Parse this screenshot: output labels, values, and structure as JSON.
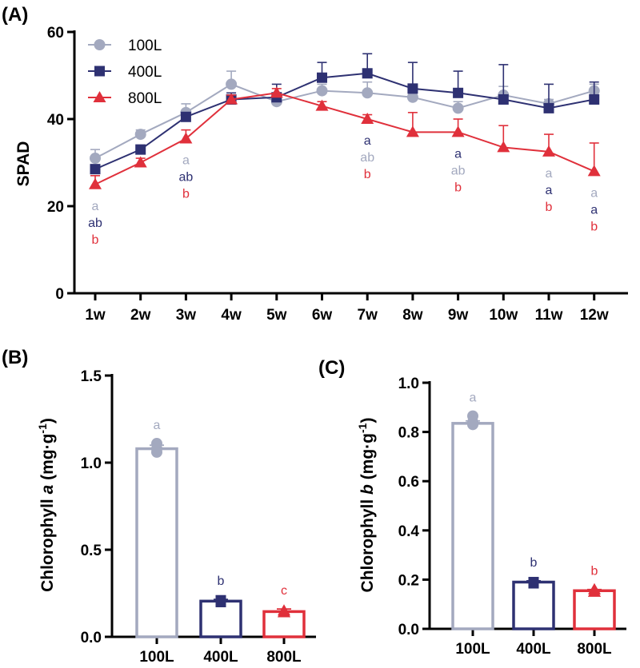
{
  "colors": {
    "100L": "#a3a9bf",
    "400L": "#2e3172",
    "800L": "#e0303b"
  },
  "chart_data": [
    {
      "panel": "(A)",
      "type": "line",
      "ylabel": "SPAD",
      "ylim": [
        0,
        60
      ],
      "yticks": [
        0,
        20,
        40,
        60
      ],
      "categories": [
        "1w",
        "2w",
        "3w",
        "4w",
        "5w",
        "6w",
        "7w",
        "8w",
        "9w",
        "10w",
        "11w",
        "12w"
      ],
      "legend": {
        "placement": "top-left",
        "entries": [
          "100L",
          "400L",
          "800L"
        ]
      },
      "series": [
        {
          "name": "100L",
          "marker": "circle",
          "values": [
            31,
            36.5,
            41.5,
            48,
            44,
            46.5,
            46,
            45,
            42.5,
            45.5,
            43.5,
            46.5
          ],
          "errors": [
            2,
            1,
            2,
            3,
            1,
            1.5,
            2.5,
            1.5,
            1.5,
            2,
            1,
            1.5
          ]
        },
        {
          "name": "400L",
          "marker": "square",
          "values": [
            28.5,
            33,
            40.5,
            44.5,
            45,
            49.5,
            50.5,
            47,
            46,
            44.5,
            42.5,
            44.5
          ],
          "errors": [
            1,
            1,
            1,
            1.5,
            3,
            3.5,
            4.5,
            6,
            5,
            8,
            5.5,
            4
          ]
        },
        {
          "name": "800L",
          "marker": "triangle",
          "values": [
            25,
            30,
            35.5,
            44.5,
            46,
            43,
            40,
            37,
            37,
            33.5,
            32.5,
            28
          ],
          "errors": [
            2,
            1,
            2,
            1,
            1,
            1,
            1,
            4.5,
            3,
            5,
            4,
            6.5
          ]
        }
      ],
      "significance": [
        {
          "category": "1w",
          "letters": [
            [
              "a",
              "100L"
            ],
            [
              "ab",
              "400L"
            ],
            [
              "b",
              "800L"
            ]
          ]
        },
        {
          "category": "3w",
          "letters": [
            [
              "a",
              "100L"
            ],
            [
              "ab",
              "400L"
            ],
            [
              "b",
              "800L"
            ]
          ]
        },
        {
          "category": "7w",
          "letters": [
            [
              "a",
              "400L"
            ],
            [
              "ab",
              "100L"
            ],
            [
              "b",
              "800L"
            ]
          ]
        },
        {
          "category": "9w",
          "letters": [
            [
              "a",
              "400L"
            ],
            [
              "ab",
              "100L"
            ],
            [
              "b",
              "800L"
            ]
          ]
        },
        {
          "category": "11w",
          "letters": [
            [
              "a",
              "100L"
            ],
            [
              "a",
              "400L"
            ],
            [
              "b",
              "800L"
            ]
          ]
        },
        {
          "category": "12w",
          "letters": [
            [
              "a",
              "100L"
            ],
            [
              "a",
              "400L"
            ],
            [
              "b",
              "800L"
            ]
          ]
        }
      ]
    },
    {
      "panel": "(B)",
      "type": "bar",
      "ylabel": "Chlorophyll a (mg·g-1)",
      "ylabel_parts": {
        "pre": "Chlorophyll ",
        "italic": "a",
        "post": " (mg·g",
        "sup": "-1",
        "close": ")"
      },
      "ylim": [
        0,
        1.5
      ],
      "yticks": [
        "0.0",
        "0.5",
        "1.0",
        "1.5"
      ],
      "categories": [
        "100L",
        "400L",
        "800L"
      ],
      "values": [
        1.08,
        0.205,
        0.145
      ],
      "errors": [
        0.02,
        0.01,
        0.015
      ],
      "points": [
        [
          1.11,
          1.08,
          1.06
        ],
        [
          0.21,
          0.2,
          0.2
        ],
        [
          0.15,
          0.14,
          0.14
        ]
      ],
      "letters": [
        "a",
        "b",
        "c"
      ]
    },
    {
      "panel": "(C)",
      "type": "bar",
      "ylabel": "Chlorophyll b (mg·g-1)",
      "ylabel_parts": {
        "pre": "Chlorophyll ",
        "italic": "b",
        "post": " (mg·g",
        "sup": "-1",
        "close": ")"
      },
      "ylim": [
        0,
        1.0
      ],
      "yticks": [
        "0.0",
        "0.2",
        "0.4",
        "0.6",
        "0.8",
        "1.0"
      ],
      "categories": [
        "100L",
        "400L",
        "800L"
      ],
      "values": [
        0.835,
        0.19,
        0.155
      ],
      "errors": [
        0.01,
        0.005,
        0.005
      ],
      "points": [
        [
          0.865,
          0.84,
          0.83
        ],
        [
          0.19,
          0.19,
          0.185
        ],
        [
          0.16,
          0.15,
          0.15
        ]
      ],
      "letters": [
        "a",
        "b",
        "b"
      ]
    }
  ]
}
